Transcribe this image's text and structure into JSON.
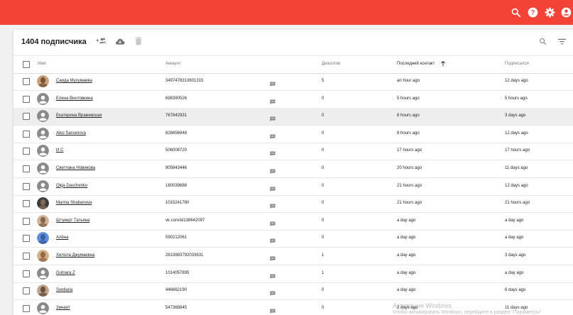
{
  "colors": {
    "brand": "#f44336",
    "icon_grey": "#7a7a7a",
    "avatar_grey": "#8a8a8a"
  },
  "topbar": {
    "icons": [
      "search-icon",
      "help-icon",
      "gear-icon",
      "account-icon"
    ]
  },
  "header": {
    "title": "1404 подписчика",
    "actions": [
      "add-group-icon",
      "cloud-download-icon",
      "delete-icon"
    ],
    "tools": [
      "search-icon",
      "filter-icon"
    ]
  },
  "table": {
    "columns": {
      "name": "Имя",
      "account": "Аккаунт",
      "dialogs": "Диалогов",
      "last_contact": "Последний контакт",
      "subscribed": "Подписался"
    },
    "sorted_column": "last_contact",
    "sort_direction": "desc",
    "rows": [
      {
        "name": "Саида Мухумаева",
        "account": "3497478313601315",
        "dialogs": "5",
        "last_contact": "an hour ago",
        "subscribed": "12 days ago",
        "avatar": "photo"
      },
      {
        "name": "Елена Винтовкина",
        "account": "698390526",
        "dialogs": "0",
        "last_contact": "5 hours ago",
        "subscribed": "5 hours ago",
        "avatar": "default"
      },
      {
        "name": "Екатерина Вражевская",
        "account": "767842931",
        "dialogs": "0",
        "last_contact": "8 hours ago",
        "subscribed": "3 days ago",
        "avatar": "default"
      },
      {
        "name": "Aiko Sarsenova",
        "account": "828856948",
        "dialogs": "0",
        "last_contact": "8 hours ago",
        "subscribed": "12 days ago",
        "avatar": "default"
      },
      {
        "name": "И С",
        "account": "506008720",
        "dialogs": "0",
        "last_contact": "17 hours ago",
        "subscribed": "17 hours ago",
        "avatar": "default"
      },
      {
        "name": "Светлана Новикова",
        "account": "905843446",
        "dialogs": "0",
        "last_contact": "20 hours ago",
        "subscribed": "11 days ago",
        "avatar": "default"
      },
      {
        "name": "Olga Daschenko",
        "account": "180039688",
        "dialogs": "0",
        "last_contact": "21 hours ago",
        "subscribed": "12 days ago",
        "avatar": "default"
      },
      {
        "name": "Marina Shabanova",
        "account": "1015241780",
        "dialogs": "0",
        "last_contact": "21 hours ago",
        "subscribed": "21 hours ago",
        "avatar": "photo"
      },
      {
        "name": "Штукерт Татьяна",
        "account": "vk.com/id138642097",
        "dialogs": "0",
        "last_contact": "a day ago",
        "subscribed": "a day ago",
        "avatar": "photo"
      },
      {
        "name": "Алёна",
        "account": "590212061",
        "dialogs": "0",
        "last_contact": "a day ago",
        "subscribed": "a day ago",
        "avatar": "photo"
      },
      {
        "name": "Хилола Джумаевна",
        "account": "2813983792033631",
        "dialogs": "1",
        "last_contact": "a day ago",
        "subscribed": "3 days ago",
        "avatar": "photo"
      },
      {
        "name": "Gulnara Z",
        "account": "1014057895",
        "dialogs": "1",
        "last_contact": "a day ago",
        "subscribed": "a day ago",
        "avatar": "default"
      },
      {
        "name": "Svetlana",
        "account": "446662190",
        "dialogs": "0",
        "last_contact": "a day ago",
        "subscribed": "6 days ago",
        "avatar": "photo"
      },
      {
        "name": "Зинаят",
        "account": "547368845",
        "dialogs": "0",
        "last_contact": "2 days ago",
        "subscribed": "11 days ago",
        "avatar": "default"
      }
    ]
  },
  "watermark": {
    "line1": "Активация Windows",
    "line2": "Чтобы активировать Windows, перейдите в раздел \"Параметры\"."
  }
}
